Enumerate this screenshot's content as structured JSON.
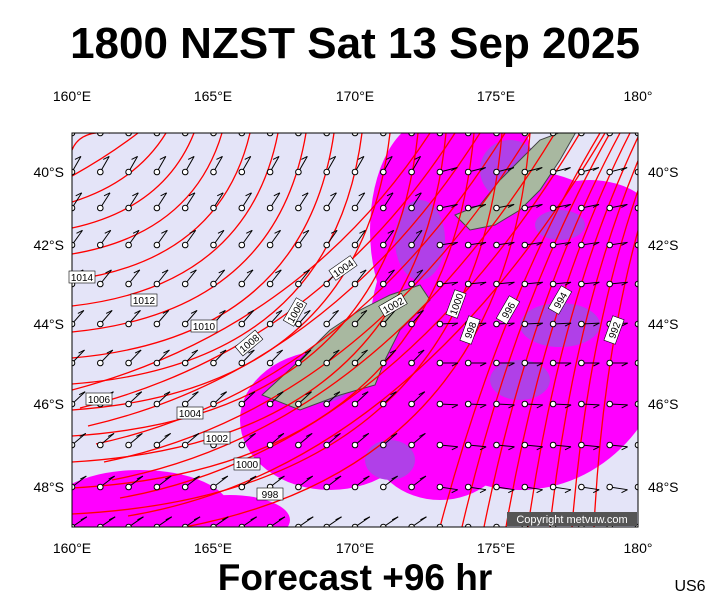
{
  "header": {
    "title": "1800 NZST Sat 13 Sep 2025"
  },
  "footer": {
    "forecast": "Forecast +96 hr",
    "code": "US6"
  },
  "map": {
    "longitude_labels": [
      "160°E",
      "165°E",
      "170°E",
      "175°E",
      "180°"
    ],
    "latitude_labels": [
      "40°S",
      "42°S",
      "44°S",
      "46°S",
      "48°S"
    ],
    "isobar_labels": [
      "1014",
      "1012",
      "1010",
      "1008",
      "1006",
      "1004",
      "1002",
      "1000",
      "998",
      "996",
      "994",
      "992",
      "1006",
      "1004",
      "1002",
      "1000",
      "998"
    ],
    "copyright": "Copyright metvuw.com"
  }
}
